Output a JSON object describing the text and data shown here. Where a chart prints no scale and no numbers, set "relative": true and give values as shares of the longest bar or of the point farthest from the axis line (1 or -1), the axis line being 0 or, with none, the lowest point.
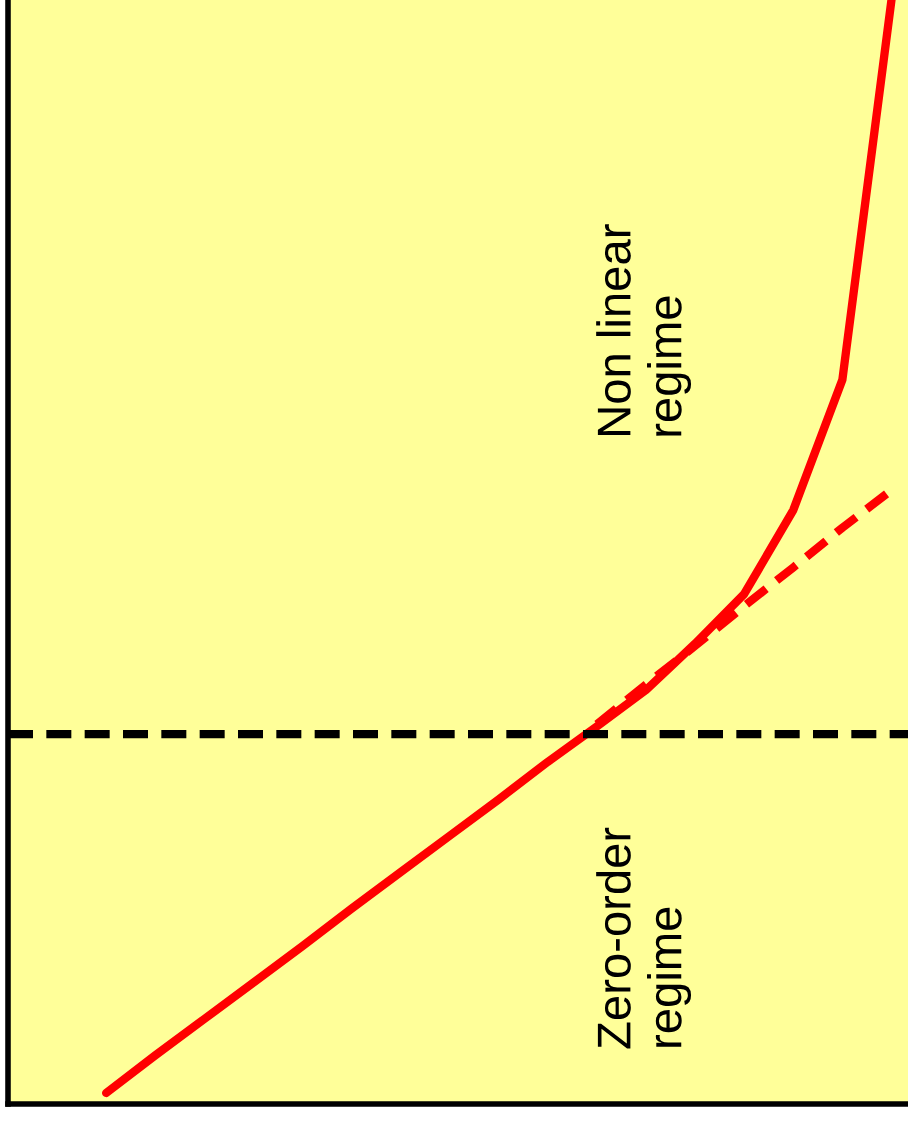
{
  "chart_data": {
    "type": "line",
    "relative": true,
    "categories": [
      null,
      null,
      null,
      null,
      null,
      null,
      null,
      null,
      null,
      null,
      null,
      null,
      null,
      null,
      null,
      null,
      null,
      null,
      null
    ],
    "series": [
      {
        "color": "#ff0000",
        "line_style": "solid",
        "values": [
          null,
          null,
          0.01,
          0.044,
          0.077,
          0.11,
          0.143,
          0.177,
          0.21,
          0.243,
          0.276,
          0.31,
          0.342,
          0.375,
          0.417,
          0.462,
          0.538,
          0.656,
          1.0
        ]
      },
      {
        "color": "#ff0000",
        "line_style": "dashed",
        "values": [
          null,
          null,
          null,
          null,
          null,
          null,
          null,
          null,
          null,
          null,
          null,
          null,
          0.344,
          0.38,
          0.415,
          0.451,
          0.486,
          0.522,
          0.556
        ]
      }
    ],
    "ref_lines": [
      {
        "axis": "y",
        "value": 0.335,
        "color": "#000000",
        "line_style": "dashed"
      }
    ],
    "annotations": [
      "Non linear\nregime",
      "Zero-order\nregime"
    ],
    "grid": false,
    "legend": false,
    "marker": "none"
  }
}
